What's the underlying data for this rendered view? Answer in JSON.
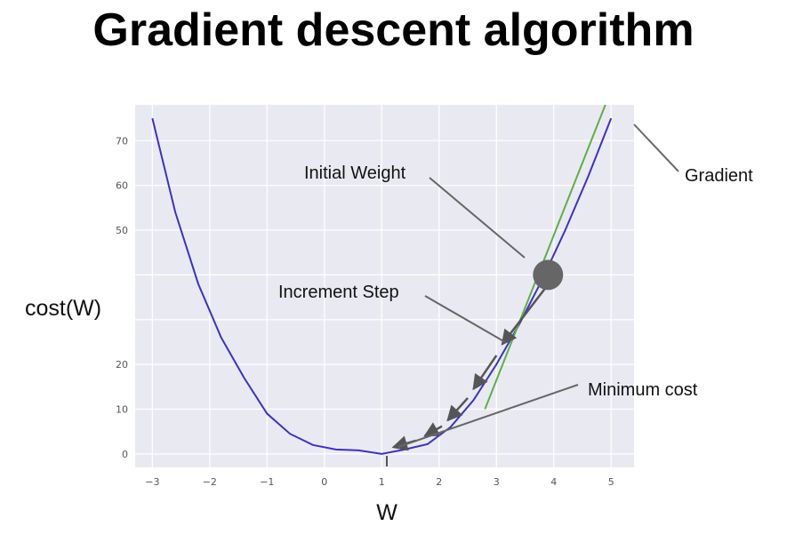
{
  "title": "Gradient descent algorithm",
  "chart_data": {
    "type": "line",
    "xlabel": "W",
    "ylabel": "cost(W)",
    "xlim": [
      -3.3,
      5.4
    ],
    "ylim": [
      -3,
      78
    ],
    "xticks": [
      "−3",
      "−2",
      "−1",
      "0",
      "1",
      "2",
      "3",
      "4",
      "5"
    ],
    "xtick_values": [
      -3,
      -2,
      -1,
      0,
      1,
      2,
      3,
      4,
      5
    ],
    "yticks": [
      "0",
      "10",
      "20",
      "",
      "",
      "50",
      "60",
      "70"
    ],
    "ytick_values": [
      0,
      10,
      20,
      30,
      40,
      50,
      60,
      70
    ],
    "grid": true,
    "series": [
      {
        "color": "#3a2fd0",
        "x": [
          -3,
          -2.6,
          -2.2,
          -1.8,
          -1.4,
          -1.0,
          -0.6,
          -0.2,
          0.2,
          0.6,
          1.0,
          1.4,
          1.8,
          2.2,
          2.6,
          3.0,
          3.4,
          3.8,
          4.2,
          4.6,
          5.0
        ],
        "y": [
          75,
          54,
          38,
          26,
          17,
          9,
          4.5,
          2.0,
          1.0,
          0.8,
          0.0,
          1.0,
          2.2,
          6.0,
          12.0,
          20.0,
          29.0,
          39.0,
          50.0,
          62.0,
          75.0
        ]
      }
    ],
    "gradient_line": {
      "color": "#5fae45",
      "x": [
        2.8,
        4.9
      ],
      "y": [
        10,
        78
      ]
    },
    "initial_point": {
      "x": 3.9,
      "y": 40,
      "color": "#666666"
    },
    "steps": [
      {
        "x1": 3.85,
        "y1": 37.0,
        "x2": 3.1,
        "y2": 24.5
      },
      {
        "x1": 3.0,
        "y1": 22.0,
        "x2": 2.6,
        "y2": 14.5
      },
      {
        "x1": 2.5,
        "y1": 12.5,
        "x2": 2.15,
        "y2": 7.5
      },
      {
        "x1": 2.05,
        "y1": 6.2,
        "x2": 1.75,
        "y2": 4.0
      },
      {
        "x1": 1.6,
        "y1": 3.0,
        "x2": 1.2,
        "y2": 1.5
      }
    ],
    "annotations": [
      {
        "label": "Initial Weight"
      },
      {
        "label": "Increment Step"
      },
      {
        "label": "Minimum cost"
      },
      {
        "label": "Gradient"
      }
    ]
  }
}
